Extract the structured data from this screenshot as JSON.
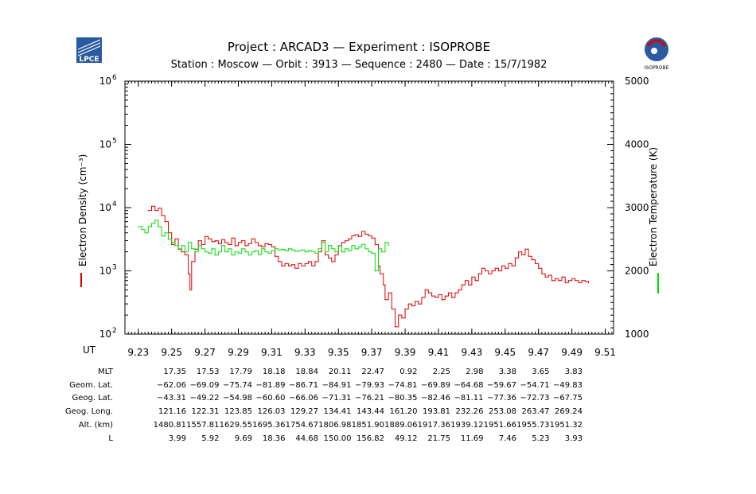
{
  "header": {
    "title": "Project : ARCAD3  —  Experiment : ISOPROBE",
    "subtitle": "Station : Moscow  —  Orbit :  3913  —  Sequence : 2480  —  Date : 15/7/1982",
    "left_logo_text": "LPCE",
    "right_logo_text": "ISOPROBE"
  },
  "colors": {
    "density": "#dd0000",
    "temperature": "#00dd00",
    "axis": "#000000"
  },
  "chart_data": {
    "type": "line",
    "x": {
      "label": "UT",
      "range": [
        9.222,
        9.515
      ],
      "ticks": [
        "9.23",
        "9.25",
        "9.27",
        "9.29",
        "9.31",
        "9.33",
        "9.35",
        "9.37",
        "9.39",
        "9.41",
        "9.43",
        "9.45",
        "9.47",
        "9.49",
        "9.51"
      ]
    },
    "y_left": {
      "label": "Electron Density (cm⁻³)",
      "scale": "log",
      "range": [
        100,
        1000000
      ],
      "ticks": [
        100,
        1000,
        10000,
        100000,
        1000000
      ]
    },
    "y_right": {
      "label": "Electron Temperature (K)",
      "scale": "linear",
      "range": [
        1000,
        5000
      ],
      "ticks": [
        "1000",
        "2000",
        "3000",
        "4000",
        "5000"
      ]
    },
    "series": [
      {
        "key": "density",
        "axis": "left",
        "color": "#dd0000",
        "points": [
          [
            9.236,
            9000
          ],
          [
            9.238,
            10500
          ],
          [
            9.24,
            9000
          ],
          [
            9.242,
            9800
          ],
          [
            9.244,
            7500
          ],
          [
            9.246,
            6000
          ],
          [
            9.248,
            4000
          ],
          [
            9.25,
            2600
          ],
          [
            9.252,
            3200
          ],
          [
            9.254,
            2200
          ],
          [
            9.256,
            2000
          ],
          [
            9.258,
            1800
          ],
          [
            9.26,
            900
          ],
          [
            9.261,
            500
          ],
          [
            9.262,
            1400
          ],
          [
            9.264,
            2200
          ],
          [
            9.266,
            3000
          ],
          [
            9.268,
            2600
          ],
          [
            9.27,
            3500
          ],
          [
            9.272,
            3200
          ],
          [
            9.274,
            2900
          ],
          [
            9.276,
            3000
          ],
          [
            9.278,
            2700
          ],
          [
            9.28,
            3100
          ],
          [
            9.282,
            2800
          ],
          [
            9.284,
            2600
          ],
          [
            9.286,
            3300
          ],
          [
            9.288,
            2500
          ],
          [
            9.29,
            2800
          ],
          [
            9.292,
            3000
          ],
          [
            9.294,
            2500
          ],
          [
            9.296,
            2700
          ],
          [
            9.298,
            3200
          ],
          [
            9.3,
            2800
          ],
          [
            9.302,
            2500
          ],
          [
            9.304,
            2400
          ],
          [
            9.306,
            2700
          ],
          [
            9.308,
            2600
          ],
          [
            9.31,
            2400
          ],
          [
            9.312,
            1700
          ],
          [
            9.314,
            1400
          ],
          [
            9.316,
            1200
          ],
          [
            9.318,
            1300
          ],
          [
            9.32,
            1200
          ],
          [
            9.322,
            1250
          ],
          [
            9.324,
            1100
          ],
          [
            9.326,
            1300
          ],
          [
            9.328,
            1200
          ],
          [
            9.33,
            1300
          ],
          [
            9.332,
            1400
          ],
          [
            9.334,
            1200
          ],
          [
            9.336,
            1400
          ],
          [
            9.338,
            2000
          ],
          [
            9.34,
            3000
          ],
          [
            9.342,
            1800
          ],
          [
            9.344,
            1600
          ],
          [
            9.346,
            1400
          ],
          [
            9.348,
            1800
          ],
          [
            9.35,
            2500
          ],
          [
            9.352,
            2800
          ],
          [
            9.354,
            3000
          ],
          [
            9.356,
            3200
          ],
          [
            9.358,
            3600
          ],
          [
            9.36,
            3700
          ],
          [
            9.362,
            3500
          ],
          [
            9.364,
            4200
          ],
          [
            9.366,
            3800
          ],
          [
            9.368,
            3600
          ],
          [
            9.37,
            3300
          ],
          [
            9.372,
            2600
          ],
          [
            9.374,
            1200
          ],
          [
            9.375,
            900
          ],
          [
            9.377,
            600
          ],
          [
            9.378,
            350
          ],
          [
            9.38,
            450
          ],
          [
            9.382,
            250
          ],
          [
            9.384,
            130
          ],
          [
            9.386,
            200
          ],
          [
            9.388,
            180
          ],
          [
            9.39,
            250
          ],
          [
            9.392,
            300
          ],
          [
            9.394,
            280
          ],
          [
            9.396,
            330
          ],
          [
            9.398,
            300
          ],
          [
            9.4,
            380
          ],
          [
            9.402,
            500
          ],
          [
            9.404,
            450
          ],
          [
            9.406,
            400
          ],
          [
            9.408,
            380
          ],
          [
            9.41,
            420
          ],
          [
            9.412,
            350
          ],
          [
            9.414,
            400
          ],
          [
            9.416,
            450
          ],
          [
            9.418,
            380
          ],
          [
            9.42,
            450
          ],
          [
            9.422,
            500
          ],
          [
            9.424,
            600
          ],
          [
            9.426,
            700
          ],
          [
            9.428,
            600
          ],
          [
            9.43,
            800
          ],
          [
            9.432,
            700
          ],
          [
            9.434,
            900
          ],
          [
            9.436,
            1100
          ],
          [
            9.438,
            1000
          ],
          [
            9.44,
            900
          ],
          [
            9.442,
            1000
          ],
          [
            9.444,
            1100
          ],
          [
            9.446,
            1000
          ],
          [
            9.448,
            1200
          ],
          [
            9.45,
            1100
          ],
          [
            9.452,
            1300
          ],
          [
            9.454,
            1200
          ],
          [
            9.456,
            1600
          ],
          [
            9.458,
            2000
          ],
          [
            9.46,
            1800
          ],
          [
            9.462,
            2200
          ],
          [
            9.464,
            1700
          ],
          [
            9.466,
            1500
          ],
          [
            9.468,
            1300
          ],
          [
            9.47,
            1100
          ],
          [
            9.472,
            900
          ],
          [
            9.474,
            800
          ],
          [
            9.476,
            850
          ],
          [
            9.478,
            700
          ],
          [
            9.48,
            750
          ],
          [
            9.482,
            700
          ],
          [
            9.484,
            800
          ],
          [
            9.486,
            650
          ],
          [
            9.488,
            700
          ],
          [
            9.49,
            750
          ],
          [
            9.492,
            700
          ],
          [
            9.494,
            650
          ],
          [
            9.496,
            700
          ],
          [
            9.498,
            680
          ],
          [
            9.5,
            650
          ]
        ]
      },
      {
        "key": "temperature",
        "axis": "right",
        "color": "#00dd00",
        "points": [
          [
            9.23,
            2700
          ],
          [
            9.232,
            2650
          ],
          [
            9.234,
            2600
          ],
          [
            9.236,
            2700
          ],
          [
            9.238,
            2750
          ],
          [
            9.24,
            2800
          ],
          [
            9.242,
            2700
          ],
          [
            9.244,
            2550
          ],
          [
            9.246,
            2600
          ],
          [
            9.248,
            2500
          ],
          [
            9.25,
            2450
          ],
          [
            9.252,
            2400
          ],
          [
            9.254,
            2350
          ],
          [
            9.256,
            2400
          ],
          [
            9.258,
            2300
          ],
          [
            9.26,
            2450
          ],
          [
            9.262,
            2350
          ],
          [
            9.264,
            2300
          ],
          [
            9.266,
            2400
          ],
          [
            9.268,
            2350
          ],
          [
            9.27,
            2300
          ],
          [
            9.272,
            2280
          ],
          [
            9.274,
            2350
          ],
          [
            9.276,
            2250
          ],
          [
            9.278,
            2300
          ],
          [
            9.28,
            2400
          ],
          [
            9.282,
            2300
          ],
          [
            9.284,
            2350
          ],
          [
            9.286,
            2250
          ],
          [
            9.288,
            2300
          ],
          [
            9.29,
            2280
          ],
          [
            9.292,
            2350
          ],
          [
            9.294,
            2300
          ],
          [
            9.296,
            2250
          ],
          [
            9.298,
            2300
          ],
          [
            9.3,
            2320
          ],
          [
            9.302,
            2260
          ],
          [
            9.304,
            2350
          ],
          [
            9.306,
            2300
          ],
          [
            9.308,
            2280
          ],
          [
            9.31,
            2320
          ],
          [
            9.312,
            2350
          ],
          [
            9.314,
            2330
          ],
          [
            9.316,
            2340
          ],
          [
            9.318,
            2320
          ],
          [
            9.32,
            2350
          ],
          [
            9.322,
            2330
          ],
          [
            9.324,
            2310
          ],
          [
            9.326,
            2320
          ],
          [
            9.328,
            2330
          ],
          [
            9.33,
            2300
          ],
          [
            9.332,
            2320
          ],
          [
            9.334,
            2310
          ],
          [
            9.336,
            2280
          ],
          [
            9.338,
            2350
          ],
          [
            9.34,
            2450
          ],
          [
            9.342,
            2300
          ],
          [
            9.344,
            2400
          ],
          [
            9.346,
            2350
          ],
          [
            9.348,
            2300
          ],
          [
            9.35,
            2400
          ],
          [
            9.352,
            2300
          ],
          [
            9.354,
            2350
          ],
          [
            9.356,
            2320
          ],
          [
            9.358,
            2400
          ],
          [
            9.36,
            2350
          ],
          [
            9.362,
            2380
          ],
          [
            9.364,
            2420
          ],
          [
            9.366,
            2350
          ],
          [
            9.368,
            2300
          ],
          [
            9.37,
            2280
          ],
          [
            9.372,
            2000
          ],
          [
            9.374,
            2350
          ],
          [
            9.376,
            2300
          ],
          [
            9.378,
            2450
          ],
          [
            9.38,
            2400
          ]
        ]
      }
    ]
  },
  "ephemeris": {
    "rows": [
      {
        "label": "MLT",
        "values": [
          "17.35",
          "17.53",
          "17.79",
          "18.18",
          "18.84",
          "20.11",
          "22.47",
          "0.92",
          "2.25",
          "2.98",
          "3.38",
          "3.65",
          "3.83"
        ]
      },
      {
        "label": "Geom. Lat.",
        "values": [
          "−62.06",
          "−69.09",
          "−75.74",
          "−81.89",
          "−86.71",
          "−84.91",
          "−79.93",
          "−74.81",
          "−69.89",
          "−64.68",
          "−59.67",
          "−54.71",
          "−49.83"
        ]
      },
      {
        "label": "Geog. Lat.",
        "values": [
          "−43.31",
          "−49.22",
          "−54.98",
          "−60.60",
          "−66.06",
          "−71.31",
          "−76.21",
          "−80.35",
          "−82.46",
          "−81.11",
          "−77.36",
          "−72.73",
          "−67.75"
        ]
      },
      {
        "label": "Geog. Long.",
        "values": [
          "121.16",
          "122.31",
          "123.85",
          "126.03",
          "129.27",
          "134.41",
          "143.44",
          "161.20",
          "193.81",
          "232.26",
          "253.08",
          "263.47",
          "269.24"
        ]
      },
      {
        "label": "Alt. (km)",
        "values": [
          "1480.81",
          "1557.81",
          "1629.55",
          "1695.36",
          "1754.67",
          "1806.98",
          "1851.90",
          "1889.06",
          "1917.36",
          "1939.12",
          "1951.66",
          "1955.73",
          "1951.32"
        ]
      },
      {
        "label": "L",
        "values": [
          "3.99",
          "5.92",
          "9.69",
          "18.36",
          "44.68",
          "150.00",
          "156.82",
          "49.12",
          "21.75",
          "11.69",
          "7.46",
          "5.23",
          "3.93"
        ]
      }
    ]
  }
}
